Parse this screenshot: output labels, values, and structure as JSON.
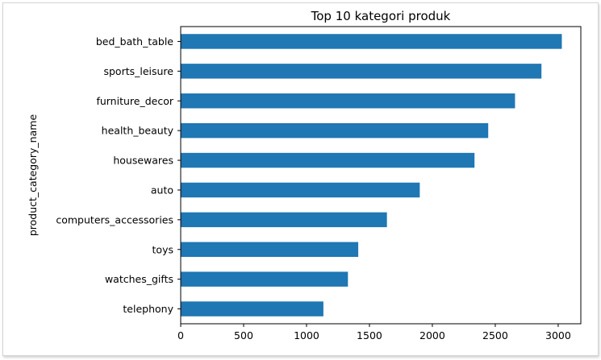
{
  "chart_data": {
    "type": "bar",
    "orientation": "horizontal",
    "title": "Top 10 kategori produk",
    "xlabel": "",
    "ylabel": "product_category_name",
    "categories": [
      "bed_bath_table",
      "sports_leisure",
      "furniture_decor",
      "health_beauty",
      "housewares",
      "auto",
      "computers_accessories",
      "toys",
      "watches_gifts",
      "telephony"
    ],
    "values": [
      3029,
      2867,
      2657,
      2444,
      2335,
      1900,
      1639,
      1411,
      1329,
      1134
    ],
    "xlim": [
      0,
      3180
    ],
    "xticks": [
      0,
      500,
      1000,
      1500,
      2000,
      2500,
      3000
    ],
    "bar_color": "#1f77b4",
    "grid": false,
    "legend": "none"
  }
}
